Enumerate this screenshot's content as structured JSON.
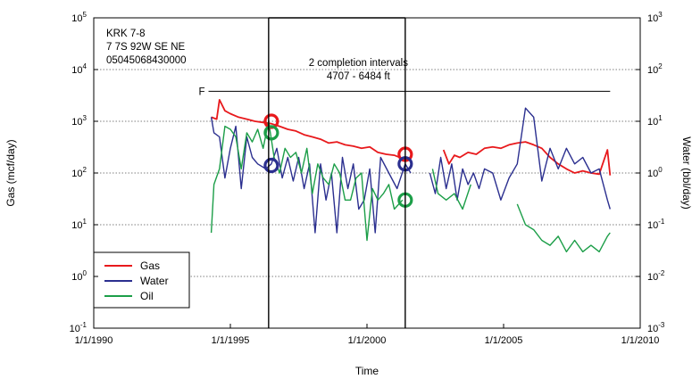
{
  "chart_data": {
    "type": "line",
    "xlabel": "Time",
    "ylabel": "Gas (mcf/day)",
    "y2label": "Water (bbl/day)",
    "x_ticks": [
      "1/1/1990",
      "1/1/1995",
      "1/1/2000",
      "1/1/2005",
      "1/1/2010"
    ],
    "xlim": [
      1990,
      2010
    ],
    "y_scale": "log",
    "ylim": [
      0.1,
      100000
    ],
    "y_ticks_exponent": [
      "-1",
      "0",
      "1",
      "2",
      "3",
      "4",
      "5"
    ],
    "y2_scale": "log",
    "y2lim": [
      0.001,
      1000
    ],
    "y2_ticks_exponent": [
      "-3",
      "-2",
      "-1",
      "0",
      "1",
      "2",
      "3"
    ],
    "tick_base": "10",
    "grid": "horizontal dotted",
    "legend_placement": "bottom-left",
    "well_info": [
      "KRK 7-8",
      "7 7S 92W SE NE",
      "05045068430000"
    ],
    "annotation": {
      "line1": "2 completion intervals",
      "line2": "4707 - 6484 ft",
      "x_start": 1996.4,
      "x_end": 2001.4
    },
    "f_marker": {
      "label": "F",
      "y": 3800,
      "x_start": 1994.2,
      "x_end": 2008.9
    },
    "series": [
      {
        "name": "Gas",
        "color": "#e8191c",
        "axis": "left",
        "x": [
          1994.3,
          1994.5,
          1994.6,
          1994.8,
          1995.0,
          1995.3,
          1995.6,
          1995.9,
          1996.2,
          1996.5,
          1996.8,
          1997.1,
          1997.4,
          1997.7,
          1998.0,
          1998.3,
          1998.6,
          1998.9,
          1999.2,
          1999.5,
          1999.8,
          2000.1,
          2000.4,
          2000.7,
          2001.0,
          2001.3,
          2001.6,
          null,
          2002.8,
          2003.0,
          2003.2,
          2003.4,
          2003.7,
          2004.0,
          2004.3,
          2004.6,
          2004.9,
          2005.2,
          2005.5,
          2005.8,
          2006.1,
          2006.4,
          2006.7,
          2007.0,
          2007.3,
          2007.6,
          2007.9,
          2008.2,
          2008.5,
          2008.8,
          2008.9
        ],
        "y": [
          1200,
          1100,
          2600,
          1600,
          1400,
          1200,
          1100,
          1000,
          950,
          900,
          800,
          700,
          650,
          550,
          500,
          450,
          380,
          400,
          350,
          330,
          300,
          320,
          250,
          230,
          220,
          190,
          180,
          null,
          280,
          150,
          220,
          200,
          250,
          230,
          300,
          320,
          300,
          350,
          380,
          400,
          350,
          300,
          200,
          150,
          120,
          100,
          110,
          100,
          95,
          280,
          90
        ]
      },
      {
        "name": "Water",
        "color": "#2b2f8f",
        "axis": "right",
        "x": [
          1994.3,
          1994.4,
          1994.6,
          1994.8,
          1995.0,
          1995.2,
          1995.4,
          1995.6,
          1995.8,
          1996.0,
          1996.3,
          1996.5,
          1996.7,
          1996.9,
          1997.1,
          1997.3,
          1997.5,
          1997.7,
          1997.9,
          1998.1,
          1998.3,
          1998.5,
          1998.7,
          1998.9,
          1999.1,
          1999.3,
          1999.5,
          1999.7,
          1999.9,
          2000.1,
          2000.3,
          2000.5,
          2000.8,
          2001.1,
          2001.4,
          2001.6,
          null,
          2002.3,
          2002.5,
          2002.7,
          2002.9,
          2003.1,
          2003.3,
          2003.5,
          2003.7,
          2003.9,
          2004.1,
          2004.3,
          2004.6,
          2004.9,
          2005.2,
          2005.5,
          2005.8,
          2006.1,
          2006.4,
          2006.7,
          2007.0,
          2007.3,
          2007.6,
          2007.9,
          2008.2,
          2008.5,
          2008.8,
          2008.9
        ],
        "y": [
          12,
          6,
          5,
          0.8,
          3,
          8,
          0.5,
          5,
          2,
          1.5,
          1.2,
          1.5,
          3,
          0.8,
          2,
          0.7,
          2,
          0.5,
          1.5,
          0.07,
          1.5,
          0.3,
          1,
          0.07,
          2,
          0.5,
          1.5,
          0.2,
          0.3,
          1.2,
          0.07,
          2,
          1,
          0.5,
          1.5,
          1,
          null,
          1,
          0.4,
          2,
          0.5,
          1.5,
          0.3,
          1.2,
          0.6,
          1,
          0.5,
          1.2,
          1,
          0.3,
          0.8,
          1.5,
          18,
          12,
          0.7,
          3,
          1.2,
          3,
          1.5,
          2,
          1,
          1.2,
          0.3,
          0.2
        ]
      },
      {
        "name": "Oil",
        "color": "#1c9e48",
        "axis": "left",
        "x": [
          1994.3,
          1994.4,
          1994.6,
          1994.8,
          1995.0,
          1995.2,
          1995.4,
          1995.6,
          1995.8,
          1996.0,
          1996.2,
          1996.4,
          1996.6,
          1996.8,
          1997.0,
          1997.2,
          1997.4,
          1997.6,
          1997.8,
          1998.0,
          1998.2,
          1998.4,
          1998.6,
          1998.8,
          1999.0,
          1999.2,
          1999.4,
          1999.6,
          1999.8,
          2000.0,
          2000.2,
          2000.4,
          2000.6,
          2000.8,
          2001.0,
          2001.3,
          null,
          2002.4,
          2002.6,
          2002.9,
          2003.2,
          2003.5,
          2003.8,
          null,
          2005.5,
          2005.8,
          2006.1,
          2006.4,
          2006.7,
          2007.0,
          2007.3,
          2007.6,
          2007.9,
          2008.2,
          2008.5,
          2008.8,
          2008.9
        ],
        "y": [
          7,
          60,
          120,
          800,
          700,
          500,
          120,
          600,
          400,
          700,
          300,
          1000,
          200,
          100,
          300,
          200,
          250,
          100,
          300,
          40,
          150,
          80,
          60,
          150,
          100,
          30,
          30,
          80,
          100,
          5,
          50,
          30,
          40,
          60,
          20,
          30,
          null,
          120,
          40,
          30,
          40,
          20,
          60,
          null,
          25,
          10,
          8,
          5,
          4,
          6,
          3,
          5,
          3,
          4,
          3,
          6,
          7
        ]
      }
    ],
    "circle_markers": [
      {
        "series": "Gas",
        "x": 1996.5,
        "y": 1000
      },
      {
        "series": "Oil",
        "x": 1996.5,
        "y": 600
      },
      {
        "series": "Water",
        "x": 1996.5,
        "y": 1.4
      },
      {
        "series": "Gas",
        "x": 2001.4,
        "y": 230
      },
      {
        "series": "Water",
        "x": 2001.4,
        "y": 1.5
      },
      {
        "series": "Oil",
        "x": 2001.4,
        "y": 30
      }
    ]
  }
}
